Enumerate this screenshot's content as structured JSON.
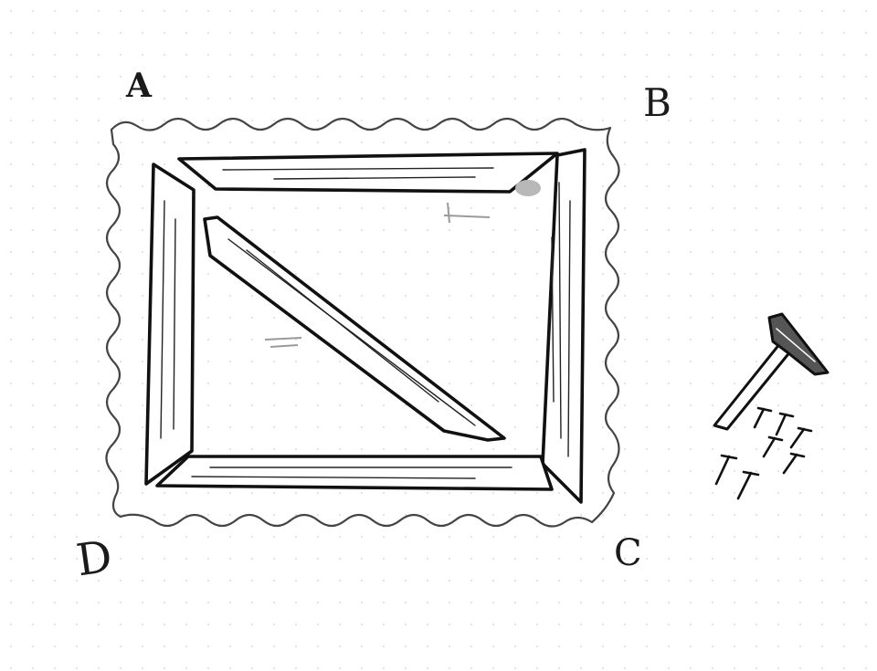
{
  "diagram": {
    "corner_labels": {
      "a": "A",
      "b": "B",
      "c": "C",
      "d": "D"
    },
    "colors": {
      "ink": "#111111",
      "wavy_outline": "#444444",
      "paper": "#ffffff",
      "smudge": "#b0b0b0"
    },
    "items": [
      {
        "name": "wooden-frame",
        "parts": [
          "top-board",
          "right-board",
          "bottom-board",
          "left-board",
          "diagonal-brace"
        ]
      },
      {
        "name": "hammer-icon"
      },
      {
        "name": "nails-icon",
        "count": 6
      }
    ]
  }
}
